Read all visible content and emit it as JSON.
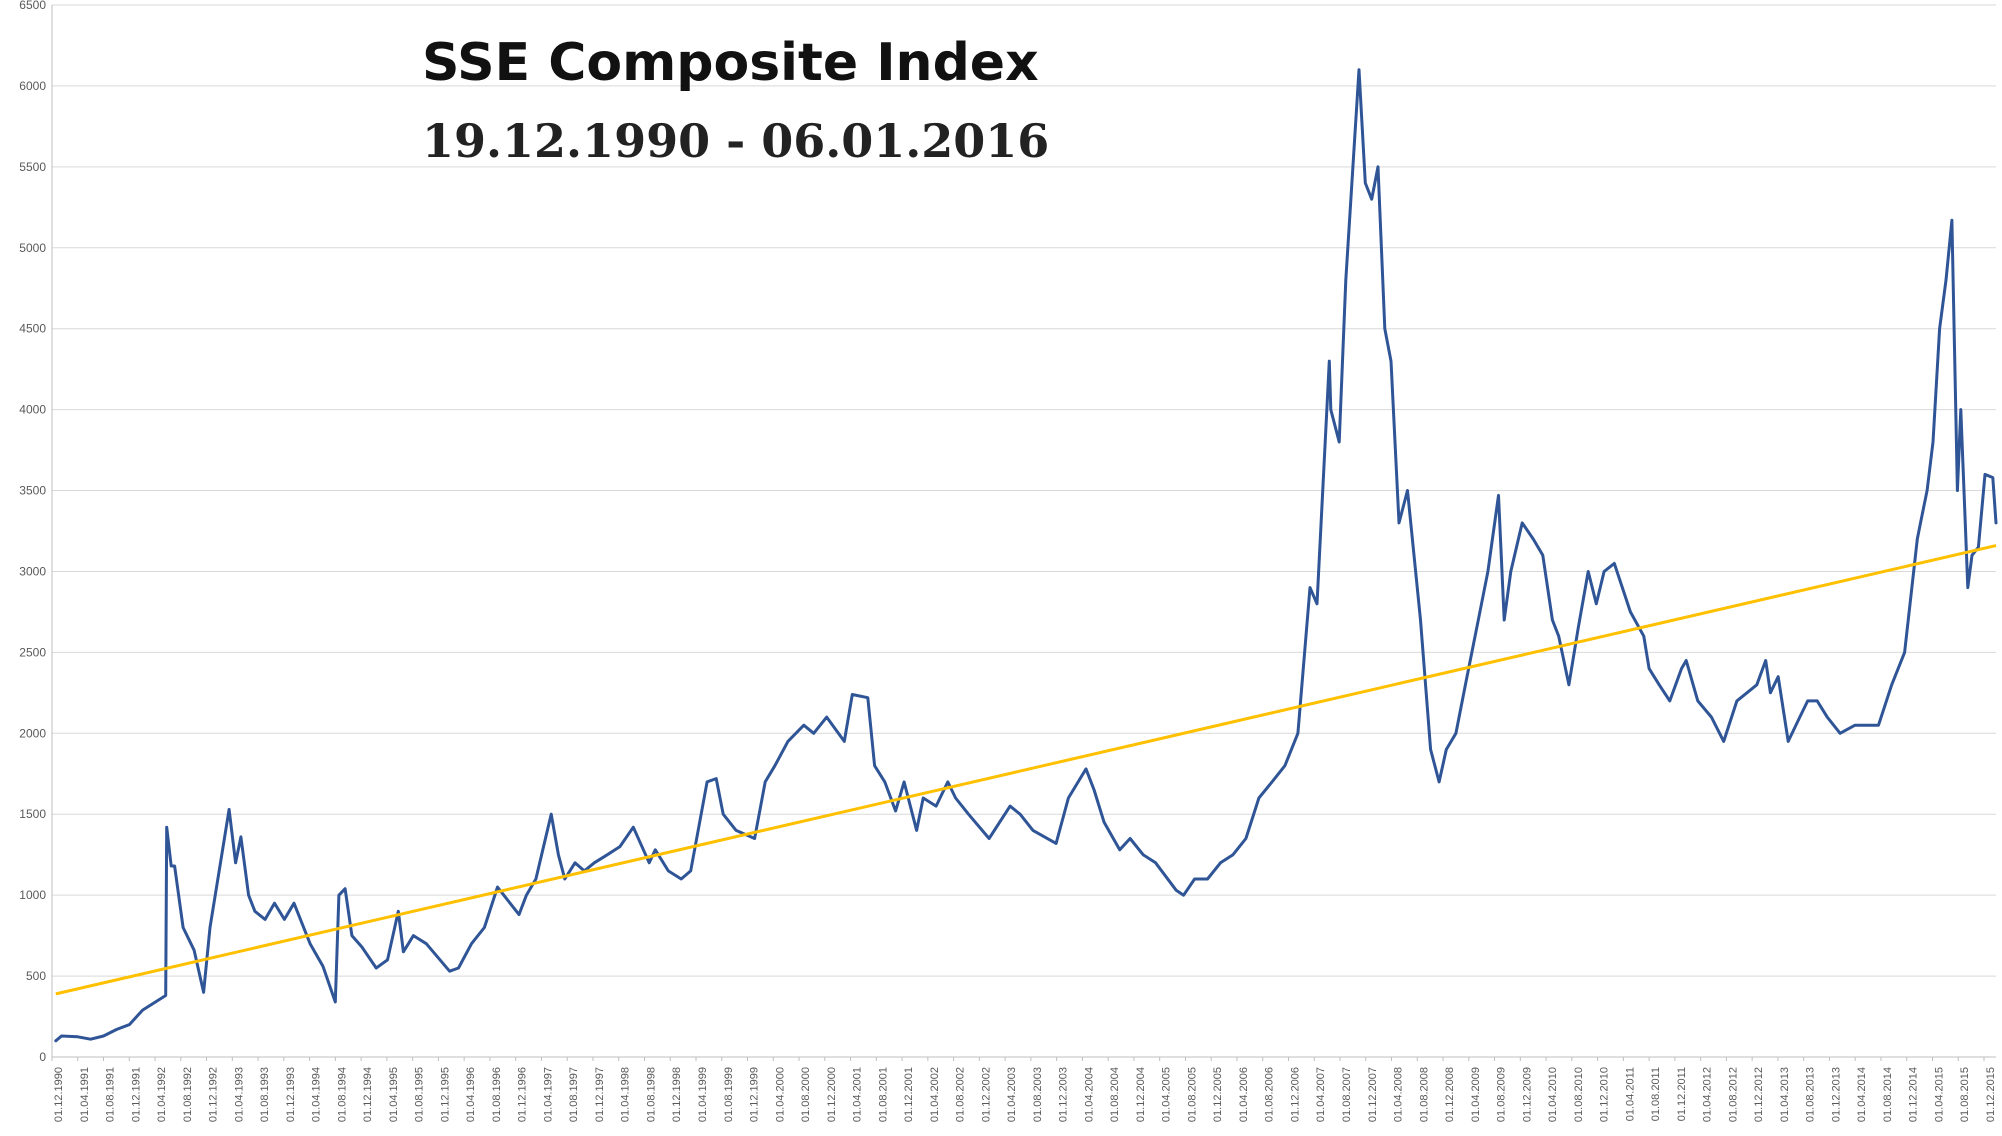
{
  "chart_data": {
    "type": "line",
    "title": "SSE Composite Index",
    "subtitle": "19.12.1990 - 06.01.2016",
    "xlabel": "",
    "ylabel": "",
    "ylim": [
      0,
      6500
    ],
    "yticks": [
      0,
      500,
      1000,
      1500,
      2000,
      2500,
      3000,
      3500,
      4000,
      4500,
      5000,
      5500,
      6000,
      6500
    ],
    "xlim": [
      "1990-12-01",
      "2016-01-06"
    ],
    "grid": "horizontal",
    "legend": "none",
    "colors": {
      "series": "#2F5597",
      "trend": "#FFC000",
      "grid": "#D9D9D9",
      "axis": "#BFBFBF"
    },
    "x_tick_labels": [
      "01.12.1990",
      "01.04.1991",
      "01.08.1991",
      "01.12.1991",
      "01.04.1992",
      "01.08.1992",
      "01.12.1992",
      "01.04.1993",
      "01.08.1993",
      "01.12.1993",
      "01.04.1994",
      "01.08.1994",
      "01.12.1994",
      "01.04.1995",
      "01.08.1995",
      "01.12.1995",
      "01.04.1996",
      "01.08.1996",
      "01.12.1996",
      "01.04.1997",
      "01.08.1997",
      "01.12.1997",
      "01.04.1998",
      "01.08.1998",
      "01.12.1998",
      "01.04.1999",
      "01.08.1999",
      "01.12.1999",
      "01.04.2000",
      "01.08.2000",
      "01.12.2000",
      "01.04.2001",
      "01.08.2001",
      "01.12.2001",
      "01.04.2002",
      "01.08.2002",
      "01.12.2002",
      "01.04.2003",
      "01.08.2003",
      "01.12.2003",
      "01.04.2004",
      "01.08.2004",
      "01.12.2004",
      "01.04.2005",
      "01.08.2005",
      "01.12.2005",
      "01.04.2006",
      "01.08.2006",
      "01.12.2006",
      "01.04.2007",
      "01.08.2007",
      "01.12.2007",
      "01.04.2008",
      "01.08.2008",
      "01.12.2008",
      "01.04.2009",
      "01.08.2009",
      "01.12.2009",
      "01.04.2010",
      "01.08.2010",
      "01.12.2010",
      "01.04.2011",
      "01.08.2011",
      "01.12.2011",
      "01.04.2012",
      "01.08.2012",
      "01.12.2012",
      "01.04.2013",
      "01.08.2013",
      "01.12.2013",
      "01.04.2014",
      "01.08.2014",
      "01.12.2014",
      "01.04.2015",
      "01.08.2015",
      "01.12.2015"
    ],
    "series": [
      {
        "x": [
          "1990-12-19",
          "1991-01-15",
          "1991-04-01",
          "1991-06-01",
          "1991-08-01",
          "1991-10-01",
          "1991-12-01",
          "1992-02-01",
          "1992-05-20",
          "1992-05-25",
          "1992-06-15",
          "1992-07-01",
          "1992-08-10",
          "1992-10-01",
          "1992-11-15",
          "1992-12-15",
          "1993-02-15",
          "1993-03-15",
          "1993-04-15",
          "1993-05-10",
          "1993-06-15",
          "1993-07-15",
          "1993-09-01",
          "1993-10-15",
          "1993-12-01",
          "1994-01-15",
          "1994-04-01",
          "1994-06-01",
          "1994-07-29",
          "1994-08-15",
          "1994-09-13",
          "1994-10-15",
          "1994-12-01",
          "1995-02-07",
          "1995-04-01",
          "1995-05-22",
          "1995-06-15",
          "1995-08-01",
          "1995-10-01",
          "1996-01-19",
          "1996-03-01",
          "1996-05-01",
          "1996-07-01",
          "1996-09-01",
          "1996-12-11",
          "1997-01-15",
          "1997-03-01",
          "1997-05-12",
          "1997-06-15",
          "1997-07-15",
          "1997-09-01",
          "1997-10-15",
          "1997-12-01",
          "1998-02-01",
          "1998-04-01",
          "1998-06-03",
          "1998-08-17",
          "1998-09-15",
          "1998-11-15",
          "1999-01-15",
          "1999-03-01",
          "1999-05-17",
          "1999-06-29",
          "1999-08-01",
          "1999-10-01",
          "1999-12-27",
          "2000-02-15",
          "2000-04-01",
          "2000-06-01",
          "2000-08-15",
          "2000-10-01",
          "2000-12-01",
          "2001-02-22",
          "2001-04-01",
          "2001-06-13",
          "2001-07-15",
          "2001-09-01",
          "2001-10-22",
          "2001-12-01",
          "2002-01-29",
          "2002-03-01",
          "2002-05-01",
          "2002-06-25",
          "2002-08-01",
          "2002-10-01",
          "2003-01-06",
          "2003-04-15",
          "2003-06-01",
          "2003-08-01",
          "2003-11-18",
          "2004-01-15",
          "2004-04-07",
          "2004-05-15",
          "2004-07-01",
          "2004-09-13",
          "2004-11-01",
          "2005-01-01",
          "2005-03-01",
          "2005-06-06",
          "2005-07-11",
          "2005-09-01",
          "2005-11-01",
          "2006-01-01",
          "2006-03-01",
          "2006-05-01",
          "2006-07-01",
          "2006-09-01",
          "2006-11-01",
          "2007-01-01",
          "2007-02-27",
          "2007-04-01",
          "2007-05-29",
          "2007-06-05",
          "2007-07-15",
          "2007-08-15",
          "2007-10-16",
          "2007-11-15",
          "2007-12-15",
          "2008-01-14",
          "2008-02-15",
          "2008-03-15",
          "2008-04-22",
          "2008-06-01",
          "2008-08-01",
          "2008-09-18",
          "2008-10-28",
          "2008-12-01",
          "2009-01-15",
          "2009-03-01",
          "2009-05-01",
          "2009-06-15",
          "2009-08-04",
          "2009-08-31",
          "2009-10-01",
          "2009-11-24",
          "2010-01-15",
          "2010-03-01",
          "2010-04-15",
          "2010-05-15",
          "2010-07-02",
          "2010-08-15",
          "2010-10-01",
          "2010-11-08",
          "2010-12-15",
          "2011-02-01",
          "2011-04-18",
          "2011-06-20",
          "2011-07-15",
          "2011-09-01",
          "2011-10-21",
          "2011-12-15",
          "2012-01-06",
          "2012-03-01",
          "2012-05-04",
          "2012-07-01",
          "2012-09-01",
          "2012-12-04",
          "2013-01-15",
          "2013-02-06",
          "2013-03-15",
          "2013-05-01",
          "2013-06-25",
          "2013-08-01",
          "2013-09-15",
          "2013-11-01",
          "2014-01-01",
          "2014-03-12",
          "2014-05-01",
          "2014-07-01",
          "2014-09-01",
          "2014-11-01",
          "2014-12-31",
          "2015-01-15",
          "2015-02-15",
          "2015-03-15",
          "2015-04-15",
          "2015-05-15",
          "2015-06-12",
          "2015-07-08",
          "2015-07-24",
          "2015-08-26",
          "2015-09-15",
          "2015-10-15",
          "2015-11-15",
          "2015-12-22",
          "2016-01-06"
        ],
        "values": [
          100,
          130,
          125,
          110,
          130,
          170,
          200,
          290,
          380,
          1420,
          1180,
          1180,
          800,
          660,
          400,
          800,
          1300,
          1530,
          1200,
          1360,
          1000,
          900,
          850,
          950,
          850,
          950,
          700,
          560,
          340,
          1000,
          1040,
          750,
          680,
          550,
          600,
          900,
          650,
          750,
          700,
          530,
          550,
          700,
          800,
          1050,
          880,
          1000,
          1100,
          1500,
          1250,
          1100,
          1200,
          1150,
          1200,
          1250,
          1300,
          1420,
          1200,
          1280,
          1150,
          1100,
          1150,
          1700,
          1720,
          1500,
          1400,
          1350,
          1700,
          1800,
          1950,
          2050,
          2000,
          2100,
          1950,
          2240,
          2220,
          1800,
          1700,
          1520,
          1700,
          1400,
          1600,
          1550,
          1700,
          1600,
          1500,
          1350,
          1550,
          1500,
          1400,
          1320,
          1600,
          1780,
          1650,
          1450,
          1280,
          1350,
          1250,
          1200,
          1030,
          1000,
          1100,
          1100,
          1200,
          1250,
          1350,
          1600,
          1700,
          1800,
          2000,
          2900,
          2800,
          4300,
          4000,
          3800,
          4800,
          6100,
          5400,
          5300,
          5500,
          4500,
          4300,
          3300,
          3500,
          2700,
          1900,
          1700,
          1900,
          2000,
          2300,
          2700,
          3000,
          3470,
          2700,
          3000,
          3300,
          3200,
          3100,
          2700,
          2600,
          2300,
          2650,
          3000,
          2800,
          3000,
          3050,
          2750,
          2600,
          2400,
          2300,
          2200,
          2400,
          2450,
          2200,
          2100,
          1950,
          2200,
          2300,
          2450,
          2250,
          2350,
          1950,
          2100,
          2200,
          2200,
          2100,
          2000,
          2050,
          2050,
          2050,
          2300,
          2500,
          3200,
          3300,
          3500,
          3800,
          4500,
          4800,
          5170,
          3500,
          4000,
          2900,
          3100,
          3150,
          3600,
          3580,
          3300
        ]
      }
    ],
    "trend": {
      "x": [
        "1990-12-19",
        "2016-01-06"
      ],
      "values": [
        390,
        3160
      ]
    }
  }
}
